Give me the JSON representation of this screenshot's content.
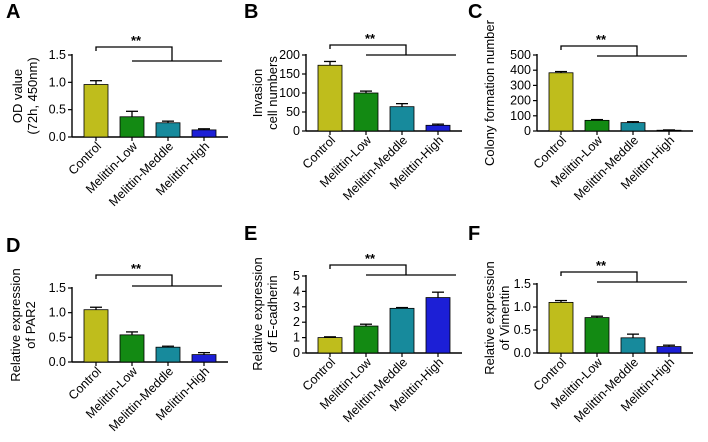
{
  "colors": {
    "Control": "#bfbd1c",
    "Melittin-Low": "#138a13",
    "Melittin-Meddle": "#178a9c",
    "Melittin-High": "#1c1fd6"
  },
  "chart_data": [
    {
      "type": "bar",
      "panel": "A",
      "ylabel_lines": [
        "OD value",
        "(72h, 450nm)"
      ],
      "categories": [
        "Control",
        "Melittin-Low",
        "Melittin-Meddle",
        "Melittin-High"
      ],
      "values": [
        0.96,
        0.37,
        0.26,
        0.13
      ],
      "errors": [
        0.07,
        0.1,
        0.03,
        0.02
      ],
      "ylim": [
        0,
        1.5
      ],
      "yticks": [
        "0.0",
        "0.5",
        "1.0",
        "1.5"
      ],
      "significance": "**"
    },
    {
      "type": "bar",
      "panel": "B",
      "ylabel_lines": [
        "Invasion",
        "cell numbers"
      ],
      "categories": [
        "Control",
        "Melittin-Low",
        "Melittin-Meddle",
        "Melittin-High"
      ],
      "values": [
        173,
        100,
        64,
        15
      ],
      "errors": [
        10,
        5,
        8,
        3
      ],
      "ylim": [
        0,
        200
      ],
      "yticks": [
        "0",
        "50",
        "100",
        "150",
        "200"
      ],
      "significance": "**"
    },
    {
      "type": "bar",
      "panel": "C",
      "ylabel_lines": [
        "Colony formation number"
      ],
      "categories": [
        "Control",
        "Melittin-Low",
        "Melittin-Meddle",
        "Melittin-High"
      ],
      "values": [
        383,
        70,
        55,
        5
      ],
      "errors": [
        8,
        5,
        6,
        2
      ],
      "ylim": [
        0,
        500
      ],
      "yticks": [
        "0",
        "100",
        "200",
        "300",
        "400",
        "500"
      ],
      "significance": "**"
    },
    {
      "type": "bar",
      "panel": "D",
      "ylabel_lines": [
        "Relative expression",
        "of PAR2"
      ],
      "categories": [
        "Control",
        "Melittin-Low",
        "Melittin-Meddle",
        "Melittin-High"
      ],
      "values": [
        1.06,
        0.55,
        0.3,
        0.15
      ],
      "errors": [
        0.05,
        0.06,
        0.02,
        0.04
      ],
      "ylim": [
        0,
        1.5
      ],
      "yticks": [
        "0.0",
        "0.5",
        "1.0",
        "1.5"
      ],
      "significance": "**"
    },
    {
      "type": "bar",
      "panel": "E",
      "ylabel_lines": [
        "Relative expression",
        "of E-cadherin"
      ],
      "categories": [
        "Control",
        "Melittin-Low",
        "Melittin-Meddle",
        "Melittin-High"
      ],
      "values": [
        1.0,
        1.75,
        2.9,
        3.6
      ],
      "errors": [
        0.05,
        0.12,
        0.05,
        0.35
      ],
      "ylim": [
        0,
        5
      ],
      "yticks": [
        "0",
        "1",
        "2",
        "3",
        "4",
        "5"
      ],
      "significance": "**"
    },
    {
      "type": "bar",
      "panel": "F",
      "ylabel_lines": [
        "Relative expression",
        "of Vimentin"
      ],
      "categories": [
        "Control",
        "Melittin-Low",
        "Melittin-Meddle",
        "Melittin-High"
      ],
      "values": [
        1.1,
        0.77,
        0.33,
        0.14
      ],
      "errors": [
        0.04,
        0.03,
        0.08,
        0.03
      ],
      "ylim": [
        0,
        1.5
      ],
      "yticks": [
        "0.0",
        "0.5",
        "1.0",
        "1.5"
      ],
      "significance": "**"
    }
  ]
}
